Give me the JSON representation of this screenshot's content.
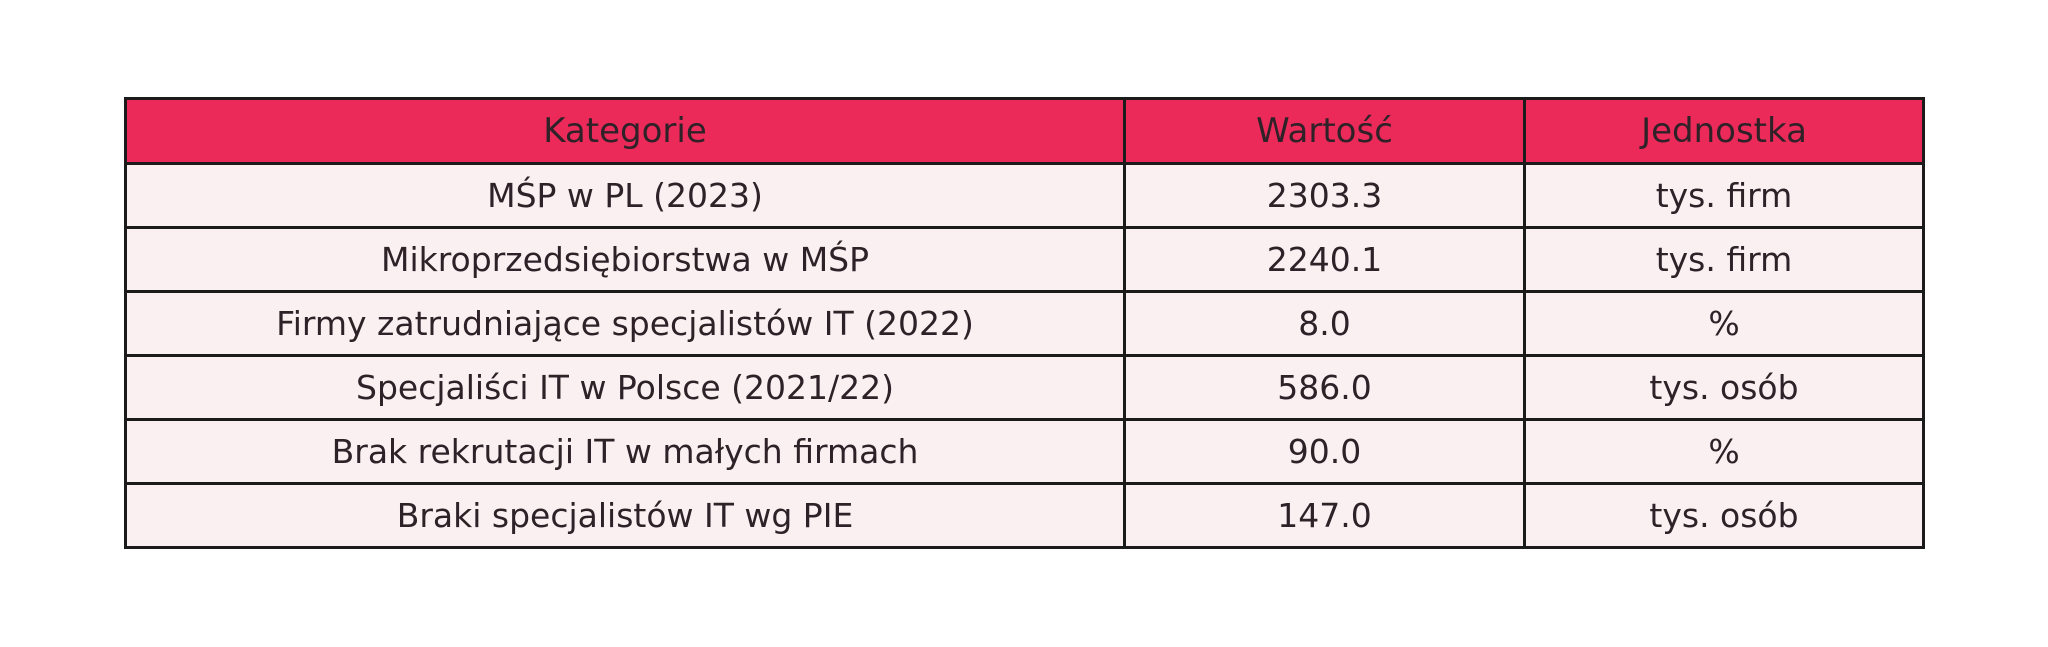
{
  "chart_data": {
    "type": "table",
    "columns": [
      "Kategorie",
      "Wartość",
      "Jednostka"
    ],
    "rows": [
      [
        "MŚP w PL (2023)",
        "2303.3",
        "tys. firm"
      ],
      [
        "Mikroprzedsiębiorstwa w MŚP",
        "2240.1",
        "tys. firm"
      ],
      [
        "Firmy zatrudniające specjalistów IT (2022)",
        "8.0",
        "%"
      ],
      [
        "Specjaliści IT w Polsce (2021/22)",
        "586.0",
        "tys. osób"
      ],
      [
        "Brak rekrutacji IT w małych firmach",
        "90.0",
        "%"
      ],
      [
        "Braki specjalistów IT wg PIE",
        "147.0",
        "tys. osób"
      ]
    ],
    "layout": {
      "legend": "none",
      "grid": "full-borders",
      "header_position": "top"
    }
  },
  "colors": {
    "header_bg": "#EB2A5A",
    "row_bg": "#FBF0F1",
    "border": "#1b1b1b",
    "text": "#2e2228",
    "page_bg": "#ffffff"
  }
}
